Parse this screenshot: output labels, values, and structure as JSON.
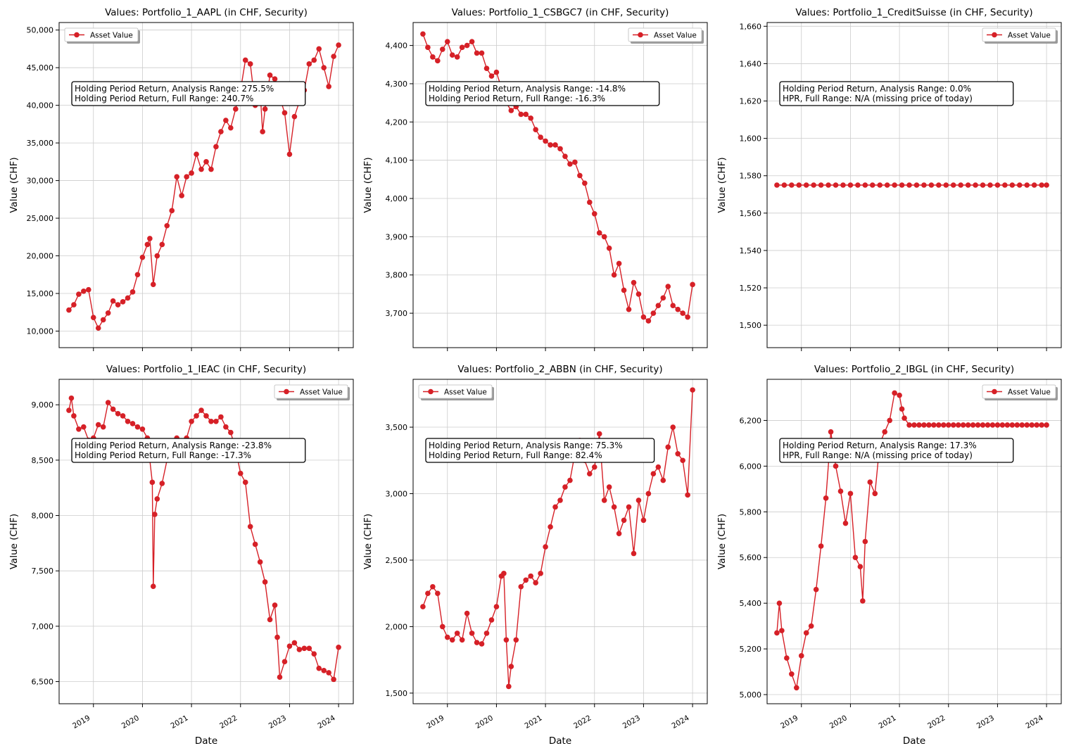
{
  "figure": {
    "xlabel": "Date",
    "ylabel": "Value (CHF)",
    "line_color": "#d62027",
    "grid_color": "#cccccc",
    "x_ticks": [
      "2019",
      "2020",
      "2021",
      "2022",
      "2023",
      "2024"
    ]
  },
  "chart_data": [
    {
      "type": "line",
      "title": "Values: Portfolio_1_AAPL (in CHF, Security)",
      "legend_label": "Asset Value",
      "legend_position": "top-left",
      "annotation": [
        "Holding Period Return, Analysis Range: 275.5%",
        "Holding Period Return, Full Range: 240.7%"
      ],
      "ylim": [
        7800,
        51000
      ],
      "y_ticks": [
        10000,
        15000,
        20000,
        25000,
        30000,
        35000,
        40000,
        45000,
        50000
      ],
      "y_tick_labels": [
        "10,000",
        "15,000",
        "20,000",
        "25,000",
        "30,000",
        "35,000",
        "40,000",
        "45,000",
        "50,000"
      ],
      "xlim": [
        2018.3,
        2024.3
      ],
      "series": [
        {
          "x": [
            2018.5,
            2018.6,
            2018.7,
            2018.8,
            2018.9,
            2019.0,
            2019.1,
            2019.2,
            2019.3,
            2019.4,
            2019.5,
            2019.6,
            2019.7,
            2019.8,
            2019.9,
            2020.0,
            2020.1,
            2020.15,
            2020.22,
            2020.3,
            2020.4,
            2020.5,
            2020.6,
            2020.7,
            2020.8,
            2020.9,
            2021.0,
            2021.1,
            2021.2,
            2021.3,
            2021.4,
            2021.5,
            2021.6,
            2021.7,
            2021.8,
            2021.9,
            2022.0,
            2022.1,
            2022.2,
            2022.3,
            2022.4,
            2022.45,
            2022.5,
            2022.6,
            2022.7,
            2022.8,
            2022.9,
            2023.0,
            2023.1,
            2023.2,
            2023.3,
            2023.4,
            2023.5,
            2023.6,
            2023.7,
            2023.8,
            2023.9,
            2024.0
          ],
          "y": [
            12800,
            13500,
            14900,
            15300,
            15500,
            11800,
            10400,
            11500,
            12400,
            14000,
            13500,
            13900,
            14400,
            15200,
            17500,
            19800,
            21500,
            22300,
            16200,
            20000,
            21500,
            24000,
            26000,
            30500,
            28000,
            30500,
            31000,
            33500,
            31500,
            32500,
            31500,
            34500,
            36500,
            38000,
            37000,
            39500,
            42000,
            46000,
            45500,
            40000,
            42000,
            36500,
            39500,
            44000,
            43500,
            41000,
            39000,
            33500,
            38500,
            40500,
            42000,
            45500,
            46000,
            47500,
            45000,
            42500,
            46500,
            48000
          ]
        }
      ]
    },
    {
      "type": "line",
      "title": "Values: Portfolio_1_CSBGC7 (in CHF, Security)",
      "legend_label": "Asset Value",
      "legend_position": "top-right",
      "annotation": [
        "Holding Period Return, Analysis Range: -14.8%",
        "Holding Period Return, Full Range: -16.3%"
      ],
      "ylim": [
        3610,
        4460
      ],
      "y_ticks": [
        3700,
        3800,
        3900,
        4000,
        4100,
        4200,
        4300,
        4400
      ],
      "y_tick_labels": [
        "3,700",
        "3,800",
        "3,900",
        "4,000",
        "4,100",
        "4,200",
        "4,300",
        "4,400"
      ],
      "xlim": [
        2018.3,
        2024.3
      ],
      "series": [
        {
          "x": [
            2018.5,
            2018.6,
            2018.7,
            2018.8,
            2018.9,
            2019.0,
            2019.1,
            2019.2,
            2019.3,
            2019.4,
            2019.5,
            2019.6,
            2019.7,
            2019.8,
            2019.9,
            2020.0,
            2020.1,
            2020.2,
            2020.3,
            2020.4,
            2020.5,
            2020.6,
            2020.7,
            2020.8,
            2020.9,
            2021.0,
            2021.1,
            2021.2,
            2021.3,
            2021.4,
            2021.5,
            2021.6,
            2021.7,
            2021.8,
            2021.9,
            2022.0,
            2022.1,
            2022.2,
            2022.3,
            2022.4,
            2022.5,
            2022.6,
            2022.7,
            2022.8,
            2022.9,
            2023.0,
            2023.1,
            2023.2,
            2023.3,
            2023.4,
            2023.5,
            2023.6,
            2023.7,
            2023.8,
            2023.9,
            2024.0
          ],
          "y": [
            4430,
            4395,
            4370,
            4360,
            4390,
            4410,
            4375,
            4370,
            4395,
            4400,
            4410,
            4380,
            4380,
            4340,
            4320,
            4330,
            4290,
            4250,
            4230,
            4240,
            4220,
            4220,
            4210,
            4180,
            4160,
            4150,
            4140,
            4140,
            4130,
            4110,
            4090,
            4095,
            4060,
            4040,
            3990,
            3960,
            3910,
            3900,
            3870,
            3800,
            3830,
            3760,
            3710,
            3780,
            3750,
            3690,
            3680,
            3700,
            3720,
            3740,
            3770,
            3720,
            3710,
            3700,
            3690,
            3775
          ]
        }
      ]
    },
    {
      "type": "line",
      "title": "Values: Portfolio_1_CreditSuisse (in CHF, Security)",
      "legend_label": "Asset Value",
      "legend_position": "top-right",
      "annotation": [
        "Holding Period Return, Analysis Range: 0.0%",
        "HPR, Full Range: N/A (missing price of today)"
      ],
      "ylim": [
        1488,
        1662
      ],
      "y_ticks": [
        1500,
        1520,
        1540,
        1560,
        1580,
        1600,
        1620,
        1640,
        1660
      ],
      "y_tick_labels": [
        "1,500",
        "1,520",
        "1,540",
        "1,560",
        "1,580",
        "1,600",
        "1,620",
        "1,640",
        "1,660"
      ],
      "xlim": [
        2018.3,
        2024.3
      ],
      "series": [
        {
          "x": [
            2018.5,
            2018.65,
            2018.8,
            2018.95,
            2019.1,
            2019.25,
            2019.4,
            2019.55,
            2019.7,
            2019.85,
            2020.0,
            2020.15,
            2020.3,
            2020.45,
            2020.6,
            2020.75,
            2020.9,
            2021.05,
            2021.2,
            2021.35,
            2021.5,
            2021.65,
            2021.8,
            2021.95,
            2022.1,
            2022.25,
            2022.4,
            2022.55,
            2022.7,
            2022.85,
            2023.0,
            2023.15,
            2023.3,
            2023.45,
            2023.6,
            2023.75,
            2023.9,
            2024.0
          ],
          "y": [
            1575,
            1575,
            1575,
            1575,
            1575,
            1575,
            1575,
            1575,
            1575,
            1575,
            1575,
            1575,
            1575,
            1575,
            1575,
            1575,
            1575,
            1575,
            1575,
            1575,
            1575,
            1575,
            1575,
            1575,
            1575,
            1575,
            1575,
            1575,
            1575,
            1575,
            1575,
            1575,
            1575,
            1575,
            1575,
            1575,
            1575,
            1575
          ]
        }
      ]
    },
    {
      "type": "line",
      "title": "Values: Portfolio_1_IEAC (in CHF, Security)",
      "legend_label": "Asset Value",
      "legend_position": "top-right",
      "annotation": [
        "Holding Period Return, Analysis Range: -23.8%",
        "Holding Period Return, Full Range: -17.3%"
      ],
      "ylim": [
        6300,
        9230
      ],
      "y_ticks": [
        6500,
        7000,
        7500,
        8000,
        8500,
        9000
      ],
      "y_tick_labels": [
        "6,500",
        "7,000",
        "7,500",
        "8,000",
        "8,500",
        "9,000"
      ],
      "xlim": [
        2018.3,
        2024.3
      ],
      "series": [
        {
          "x": [
            2018.5,
            2018.55,
            2018.6,
            2018.7,
            2018.8,
            2018.9,
            2019.0,
            2019.1,
            2019.2,
            2019.3,
            2019.4,
            2019.5,
            2019.6,
            2019.7,
            2019.8,
            2019.9,
            2020.0,
            2020.1,
            2020.2,
            2020.22,
            2020.25,
            2020.3,
            2020.4,
            2020.5,
            2020.6,
            2020.7,
            2020.8,
            2020.9,
            2021.0,
            2021.1,
            2021.2,
            2021.3,
            2021.4,
            2021.5,
            2021.6,
            2021.7,
            2021.8,
            2021.9,
            2022.0,
            2022.1,
            2022.2,
            2022.3,
            2022.4,
            2022.5,
            2022.6,
            2022.7,
            2022.75,
            2022.8,
            2022.9,
            2023.0,
            2023.1,
            2023.2,
            2023.3,
            2023.4,
            2023.5,
            2023.6,
            2023.7,
            2023.8,
            2023.9,
            2024.0
          ],
          "y": [
            8950,
            9060,
            8900,
            8780,
            8800,
            8680,
            8700,
            8820,
            8800,
            9020,
            8960,
            8920,
            8900,
            8850,
            8830,
            8800,
            8780,
            8700,
            8300,
            7360,
            8010,
            8150,
            8290,
            8500,
            8600,
            8700,
            8650,
            8700,
            8850,
            8900,
            8950,
            8900,
            8850,
            8850,
            8890,
            8800,
            8750,
            8600,
            8380,
            8300,
            7900,
            7740,
            7580,
            7400,
            7060,
            7190,
            6900,
            6540,
            6680,
            6820,
            6850,
            6790,
            6800,
            6800,
            6750,
            6620,
            6600,
            6580,
            6520,
            6810
          ]
        }
      ]
    },
    {
      "type": "line",
      "title": "Values: Portfolio_2_ABBN (in CHF, Security)",
      "legend_label": "Asset Value",
      "legend_position": "top-left",
      "annotation": [
        "Holding Period Return, Analysis Range: 75.3%",
        "Holding Period Return, Full Range: 82.4%"
      ],
      "ylim": [
        1420,
        3860
      ],
      "y_ticks": [
        1500,
        2000,
        2500,
        3000,
        3500
      ],
      "y_tick_labels": [
        "1,500",
        "2,000",
        "2,500",
        "3,000",
        "3,500"
      ],
      "xlim": [
        2018.3,
        2024.3
      ],
      "series": [
        {
          "x": [
            2018.5,
            2018.6,
            2018.7,
            2018.8,
            2018.9,
            2019.0,
            2019.1,
            2019.2,
            2019.3,
            2019.4,
            2019.5,
            2019.6,
            2019.7,
            2019.8,
            2019.9,
            2020.0,
            2020.1,
            2020.15,
            2020.2,
            2020.25,
            2020.3,
            2020.4,
            2020.5,
            2020.6,
            2020.7,
            2020.8,
            2020.9,
            2021.0,
            2021.1,
            2021.2,
            2021.3,
            2021.4,
            2021.5,
            2021.6,
            2021.7,
            2021.8,
            2021.9,
            2022.0,
            2022.1,
            2022.2,
            2022.3,
            2022.4,
            2022.5,
            2022.6,
            2022.7,
            2022.8,
            2022.9,
            2023.0,
            2023.1,
            2023.2,
            2023.3,
            2023.4,
            2023.5,
            2023.6,
            2023.7,
            2023.8,
            2023.9,
            2024.0
          ],
          "y": [
            2150,
            2250,
            2300,
            2250,
            2000,
            1920,
            1900,
            1950,
            1900,
            2100,
            1950,
            1880,
            1870,
            1950,
            2050,
            2150,
            2380,
            2400,
            1900,
            1550,
            1700,
            1900,
            2300,
            2350,
            2380,
            2330,
            2400,
            2600,
            2750,
            2900,
            2950,
            3050,
            3100,
            3300,
            3400,
            3250,
            3150,
            3200,
            3450,
            2950,
            3050,
            2900,
            2700,
            2800,
            2900,
            2550,
            2950,
            2800,
            3000,
            3150,
            3200,
            3100,
            3350,
            3500,
            3300,
            3250,
            2990,
            3780
          ]
        }
      ]
    },
    {
      "type": "line",
      "title": "Values: Portfolio_2_IBGL (in CHF, Security)",
      "legend_label": "Asset Value",
      "legend_position": "top-right",
      "annotation": [
        "Holding Period Return, Analysis Range: 17.3%",
        "HPR, Full Range: N/A (missing price of today)"
      ],
      "ylim": [
        4960,
        6380
      ],
      "y_ticks": [
        5000,
        5200,
        5400,
        5600,
        5800,
        6000,
        6200
      ],
      "y_tick_labels": [
        "5,000",
        "5,200",
        "5,400",
        "5,600",
        "5,800",
        "6,000",
        "6,200"
      ],
      "xlim": [
        2018.3,
        2024.3
      ],
      "series": [
        {
          "x": [
            2018.5,
            2018.55,
            2018.6,
            2018.7,
            2018.8,
            2018.9,
            2019.0,
            2019.1,
            2019.2,
            2019.3,
            2019.4,
            2019.5,
            2019.6,
            2019.7,
            2019.8,
            2019.9,
            2020.0,
            2020.1,
            2020.2,
            2020.25,
            2020.3,
            2020.4,
            2020.5,
            2020.6,
            2020.7,
            2020.8,
            2020.9,
            2021.0,
            2021.05,
            2021.1,
            2021.2,
            2021.3,
            2021.4,
            2021.5,
            2021.6,
            2021.7,
            2021.8,
            2021.9,
            2022.0,
            2022.1,
            2022.2,
            2022.3,
            2022.4,
            2022.5,
            2022.6,
            2022.7,
            2022.8,
            2022.9,
            2023.0,
            2023.1,
            2023.2,
            2023.3,
            2023.4,
            2023.5,
            2023.6,
            2023.7,
            2023.8,
            2023.9,
            2024.0
          ],
          "y": [
            5270,
            5400,
            5280,
            5160,
            5090,
            5030,
            5170,
            5270,
            5300,
            5460,
            5650,
            5860,
            6150,
            6000,
            5890,
            5750,
            5880,
            5600,
            5560,
            5410,
            5670,
            5930,
            5880,
            6100,
            6150,
            6200,
            6320,
            6310,
            6250,
            6210,
            6180,
            6180,
            6180,
            6180,
            6180,
            6180,
            6180,
            6180,
            6180,
            6180,
            6180,
            6180,
            6180,
            6180,
            6180,
            6180,
            6180,
            6180,
            6180,
            6180,
            6180,
            6180,
            6180,
            6180,
            6180,
            6180,
            6180,
            6180,
            6180
          ]
        }
      ]
    }
  ]
}
